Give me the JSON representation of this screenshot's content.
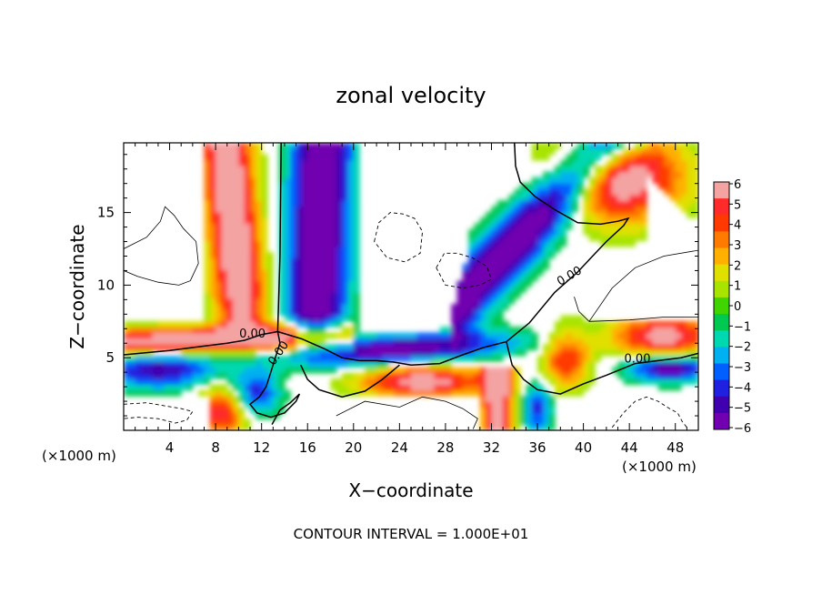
{
  "chart_data": {
    "type": "heatmap",
    "title": "zonal velocity",
    "xlabel": "X−coordinate",
    "ylabel": "Z−coordinate",
    "x_unit_left": "(×1000 m)",
    "x_unit_right": "(×1000 m)",
    "footer": "CONTOUR INTERVAL = 1.000E+01",
    "xlim": [
      0,
      50
    ],
    "ylim": [
      0,
      19.8
    ],
    "x_ticks": [
      4,
      8,
      12,
      16,
      20,
      24,
      28,
      32,
      36,
      40,
      44,
      48
    ],
    "x_tick_labels": [
      "4",
      "8",
      "12",
      "16",
      "20",
      "24",
      "28",
      "32",
      "36",
      "40",
      "44",
      "48"
    ],
    "y_ticks": [
      5,
      10,
      15
    ],
    "y_tick_labels": [
      "5",
      "10",
      "15"
    ],
    "colorbar": {
      "min": -6,
      "max": 6,
      "ticks": [
        6,
        5,
        4,
        3,
        2,
        1,
        0,
        -1,
        -2,
        -3,
        -4,
        -5,
        -6
      ],
      "tick_labels": [
        "6",
        "5",
        "4",
        "3",
        "2",
        "1",
        "0",
        "−1",
        "−2",
        "−3",
        "−4",
        "−5",
        "−6"
      ],
      "colors": [
        "#f4a3a3",
        "#ff2a2a",
        "#ff3a00",
        "#ff7a00",
        "#ffb000",
        "#e0e000",
        "#a8e400",
        "#40d400",
        "#00c850",
        "#00d8b0",
        "#00b0f0",
        "#0060ff",
        "#2020e0",
        "#4000b0",
        "#7000b0"
      ]
    },
    "contour_labels": [
      {
        "text": "0.00",
        "x": 11.2,
        "z": 6.6
      },
      {
        "text": "0.00",
        "x": 13.5,
        "z": 5.3
      },
      {
        "text": "0.00",
        "x": 38.8,
        "z": 10.6
      },
      {
        "text": "0.00",
        "x": 44.7,
        "z": 4.9
      }
    ],
    "zero_contour": [
      [
        [
          0,
          5.2
        ],
        [
          4,
          5.5
        ],
        [
          7,
          5.8
        ],
        [
          9,
          6.0
        ],
        [
          10.5,
          6.2
        ],
        [
          12,
          6.6
        ],
        [
          13.4,
          6.8
        ],
        [
          13.6,
          12
        ],
        [
          13.7,
          19.8
        ]
      ],
      [
        [
          13.4,
          6.8
        ],
        [
          13.6,
          6.0
        ],
        [
          13.2,
          5.0
        ],
        [
          12.8,
          4.0
        ],
        [
          12.4,
          3.0
        ],
        [
          11.8,
          2.3
        ],
        [
          11.0,
          1.8
        ],
        [
          11.6,
          1.2
        ],
        [
          12.8,
          0.9
        ],
        [
          14,
          1.2
        ],
        [
          15,
          2.0
        ],
        [
          15.3,
          2.5
        ],
        [
          14.5,
          1.9
        ],
        [
          13.6,
          1.4
        ],
        [
          12.9,
          0.4
        ]
      ],
      [
        [
          13.4,
          6.8
        ],
        [
          15.5,
          6.3
        ],
        [
          17.5,
          5.6
        ],
        [
          19,
          5.0
        ],
        [
          20.5,
          4.8
        ],
        [
          22,
          4.8
        ],
        [
          23.5,
          4.7
        ],
        [
          25,
          4.5
        ],
        [
          27.5,
          4.6
        ],
        [
          29.5,
          5.2
        ],
        [
          31.3,
          5.7
        ],
        [
          33.3,
          6.1
        ],
        [
          35.3,
          7.4
        ],
        [
          37.5,
          9.5
        ],
        [
          39.5,
          10.9
        ],
        [
          40.8,
          12.0
        ],
        [
          42,
          13.0
        ],
        [
          43.5,
          14.1
        ],
        [
          43.9,
          14.6
        ],
        [
          43,
          14.4
        ],
        [
          41.5,
          14.2
        ],
        [
          39.5,
          14.3
        ],
        [
          37.5,
          15.2
        ],
        [
          35.8,
          16.1
        ],
        [
          34.5,
          17.1
        ],
        [
          34.1,
          18.2
        ],
        [
          34.0,
          19.8
        ]
      ],
      [
        [
          33.3,
          6.1
        ],
        [
          33.8,
          4.5
        ],
        [
          34.8,
          3.5
        ],
        [
          36,
          2.8
        ],
        [
          38,
          2.5
        ],
        [
          40,
          3.2
        ],
        [
          42,
          3.8
        ],
        [
          44.5,
          4.6
        ],
        [
          46.5,
          4.8
        ],
        [
          48.5,
          5.0
        ],
        [
          50,
          5.3
        ]
      ],
      [
        [
          24,
          4.5
        ],
        [
          22.5,
          3.5
        ],
        [
          21,
          2.7
        ],
        [
          19,
          2.3
        ],
        [
          17,
          2.8
        ],
        [
          16,
          3.5
        ],
        [
          15.4,
          4.5
        ]
      ]
    ],
    "thin_contours": [
      [
        [
          0,
          12.5
        ],
        [
          2,
          13.3
        ],
        [
          3.2,
          14.4
        ],
        [
          3.6,
          15.4
        ],
        [
          4.4,
          14.8
        ],
        [
          5.2,
          13.9
        ],
        [
          6.3,
          13.0
        ],
        [
          6.5,
          11.5
        ],
        [
          5.8,
          10.3
        ],
        [
          4.8,
          10.0
        ],
        [
          3.0,
          10.2
        ],
        [
          1.2,
          10.6
        ],
        [
          0,
          11.0
        ]
      ],
      [
        [
          40.5,
          7.5
        ],
        [
          42.5,
          9.8
        ],
        [
          44.5,
          11.2
        ],
        [
          47,
          12.0
        ],
        [
          50,
          12.4
        ]
      ],
      [
        [
          40.5,
          7.5
        ],
        [
          44,
          7.6
        ],
        [
          47,
          7.8
        ],
        [
          50,
          7.8
        ]
      ],
      [
        [
          40.5,
          7.5
        ],
        [
          39.6,
          8.2
        ],
        [
          39.2,
          9.2
        ]
      ],
      [
        [
          18.5,
          1.0
        ],
        [
          21,
          2.0
        ],
        [
          24,
          1.6
        ],
        [
          26,
          2.3
        ],
        [
          28,
          2.0
        ],
        [
          29.5,
          1.5
        ],
        [
          30.8,
          0.8
        ],
        [
          30.4,
          0.1
        ]
      ]
    ],
    "dashed_contours": [
      [
        [
          21.8,
          13.0
        ],
        [
          22.2,
          14.3
        ],
        [
          23.2,
          15.0
        ],
        [
          24.3,
          14.9
        ],
        [
          25.3,
          14.6
        ],
        [
          26.0,
          13.7
        ],
        [
          25.8,
          12.2
        ],
        [
          24.5,
          11.6
        ],
        [
          22.9,
          11.9
        ],
        [
          21.8,
          13.0
        ]
      ],
      [
        [
          27.2,
          11.2
        ],
        [
          27.9,
          12.2
        ],
        [
          29.0,
          12.2
        ],
        [
          30.3,
          11.9
        ],
        [
          31.6,
          11.3
        ],
        [
          32.0,
          10.4
        ],
        [
          31.0,
          10.0
        ],
        [
          29.5,
          9.8
        ],
        [
          28.0,
          10.0
        ],
        [
          27.2,
          11.2
        ]
      ],
      [
        [
          0,
          1.8
        ],
        [
          2.0,
          1.9
        ],
        [
          3.5,
          1.7
        ],
        [
          5.0,
          1.5
        ],
        [
          6.0,
          1.3
        ],
        [
          5.5,
          0.7
        ],
        [
          4.5,
          0.5
        ],
        [
          3.0,
          0.8
        ],
        [
          1.2,
          0.9
        ],
        [
          0,
          0.8
        ]
      ],
      [
        [
          42.5,
          0.2
        ],
        [
          43.5,
          1.2
        ],
        [
          44.5,
          2.0
        ],
        [
          45.5,
          2.3
        ],
        [
          46.5,
          2.0
        ],
        [
          47.5,
          1.5
        ],
        [
          48.2,
          1.2
        ],
        [
          48.6,
          0.6
        ],
        [
          49.0,
          0.2
        ]
      ]
    ]
  }
}
